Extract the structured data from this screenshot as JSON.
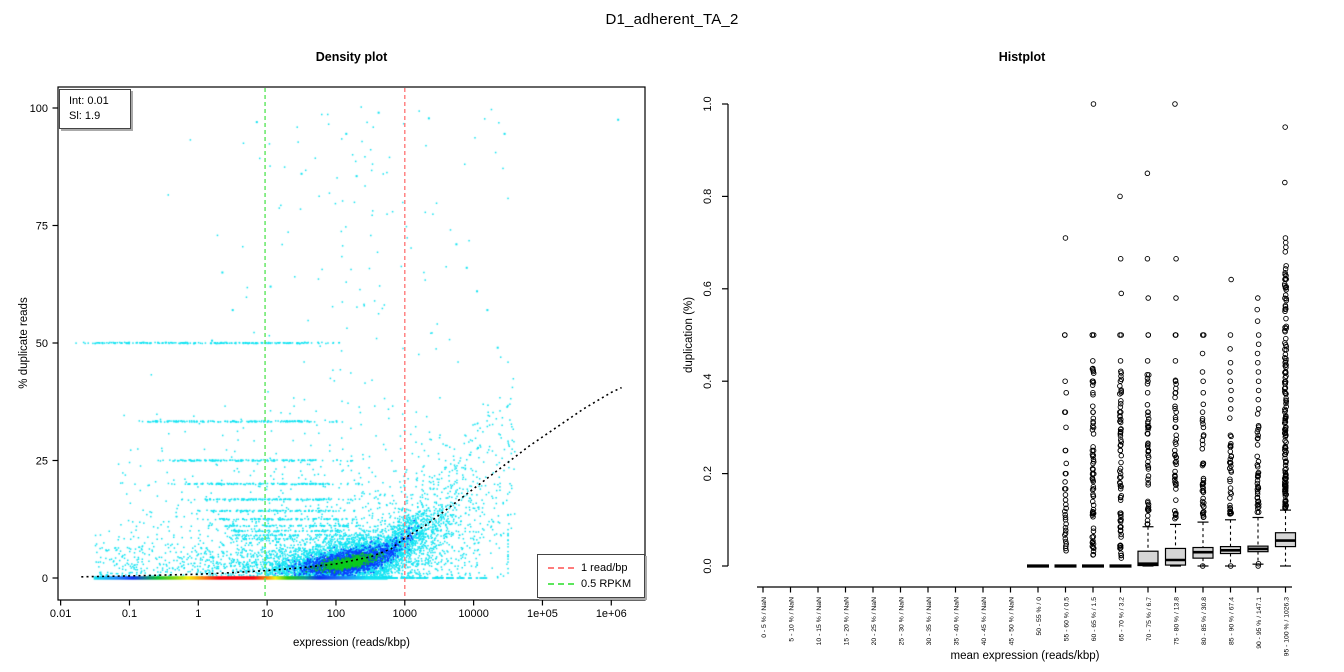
{
  "title": "D1_adherent_TA_2",
  "density_plot": {
    "title": "Density plot",
    "xlabel": "expression (reads/kbp)",
    "ylabel": "% duplicate reads",
    "stats_box": {
      "intercept_label": "Int: 0.01",
      "slope_label": "Sl: 1.9"
    },
    "legend_items": [
      {
        "label": "1 read/bp",
        "color": "#ff7b7b"
      },
      {
        "label": "0.5 RPKM",
        "color": "#5ce65c"
      }
    ]
  },
  "histplot": {
    "title": "Histplot",
    "xlabel": "mean expression (reads/kbp)",
    "ylabel": "duplication (%)"
  },
  "chart_data": [
    {
      "type": "scatter",
      "title": "Density plot",
      "xlabel": "expression (reads/kbp)",
      "ylabel": "% duplicate reads",
      "x_scale": "log10",
      "xlim_log10": [
        -2.04,
        6.49
      ],
      "ylim": [
        -4.7,
        104.5
      ],
      "x_ticks": [
        {
          "log10": -2,
          "label": "0.01"
        },
        {
          "log10": -1,
          "label": "0.1"
        },
        {
          "log10": 0,
          "label": "1"
        },
        {
          "log10": 1,
          "label": "10"
        },
        {
          "log10": 2,
          "label": "100"
        },
        {
          "log10": 3,
          "label": "1000"
        },
        {
          "log10": 4,
          "label": "10000"
        },
        {
          "log10": 5,
          "label": "1e+05"
        },
        {
          "log10": 6,
          "label": "1e+06"
        }
      ],
      "y_ticks": [
        {
          "v": 0,
          "label": "0"
        },
        {
          "v": 25,
          "label": "25"
        },
        {
          "v": 50,
          "label": "50"
        },
        {
          "v": 75,
          "label": "75"
        },
        {
          "v": 100,
          "label": "100"
        }
      ],
      "fit": {
        "intercept": 0.01,
        "slope": 1.9
      },
      "vlines": [
        {
          "log10x": 3.0,
          "label": "1 read/bp",
          "color": "#ff7b7b",
          "style": "dashed"
        },
        {
          "log10x": 0.97,
          "label": "0.5 RPKM",
          "color": "#5ce65c",
          "style": "dashed"
        }
      ],
      "fit_curve_log10x_pct": [
        [
          -1.7,
          0.25
        ],
        [
          -1.0,
          0.45
        ],
        [
          0,
          0.8
        ],
        [
          0.5,
          1.15
        ],
        [
          1,
          1.6
        ],
        [
          1.5,
          2.2
        ],
        [
          2,
          3.0
        ],
        [
          2.5,
          4.5
        ],
        [
          2.8,
          6.2
        ],
        [
          3,
          8.5
        ],
        [
          3.3,
          11.2
        ],
        [
          3.6,
          14.5
        ],
        [
          4,
          19
        ],
        [
          4.4,
          23.5
        ],
        [
          4.8,
          28
        ],
        [
          5.2,
          32
        ],
        [
          5.6,
          36
        ],
        [
          6,
          39.5
        ],
        [
          6.15,
          40.5
        ]
      ],
      "density_features": {
        "point_color": "#10e3f2",
        "stripes_pct": [
          {
            "pct": 50,
            "range_log10": [
              -1.5,
              1.58
            ],
            "n": 210
          },
          {
            "pct": 33.3,
            "range_log10": [
              -0.7,
              1.62
            ],
            "n": 150
          },
          {
            "pct": 25,
            "range_log10": [
              -0.38,
              1.77
            ],
            "n": 140
          },
          {
            "pct": 20,
            "range_log10": [
              -0.16,
              1.91
            ],
            "n": 130
          },
          {
            "pct": 16.7,
            "range_log10": [
              0.02,
              1.95
            ],
            "n": 112
          },
          {
            "pct": 14.3,
            "range_log10": [
              0.17,
              2.06
            ],
            "n": 100
          },
          {
            "pct": 12.5,
            "range_log10": [
              0.29,
              2.13
            ],
            "n": 95
          },
          {
            "pct": 11.1,
            "range_log10": [
              0.39,
              2.18
            ],
            "n": 85
          },
          {
            "pct": 10,
            "range_log10": [
              0.49,
              2.2
            ],
            "n": 72
          },
          {
            "pct": 9.1,
            "range_log10": [
              0.57,
              2.22
            ],
            "n": 58
          },
          {
            "pct": 8.3,
            "range_log10": [
              0.64,
              2.25
            ],
            "n": 46
          }
        ],
        "cloud_layers": [
          {
            "color": "#10e3f2",
            "n": 4200,
            "cx_log10": 2.2,
            "sx_log10": 0.62,
            "sy_pct": 2.6
          },
          {
            "color": "#0a3cff",
            "n": 1900,
            "cx_log10": 2.2,
            "sx_log10": 0.34,
            "sy_pct": 1.2
          },
          {
            "color": "#0ccb1f",
            "n": 750,
            "cx_log10": 2.17,
            "sx_log10": 0.185,
            "sy_pct": 0.62
          }
        ],
        "background_scatter": [
          {
            "n": 1400,
            "cx_log10": 2.3,
            "sx_log10": 1.0,
            "y_mode": "mixed"
          },
          {
            "n": 400,
            "range_log10": [
              -1.5,
              1.2
            ],
            "y_mode": "low"
          },
          {
            "n": 200,
            "range_log10": [
              -1.2,
              1.5
            ],
            "y_mode": "mid"
          }
        ],
        "curve_tail": {
          "n": 520,
          "range_log10": [
            2.9,
            4.6
          ]
        },
        "zero_band": {
          "y_pct": 0,
          "extent_log10": [
            -1.52,
            2.75
          ],
          "sparse_tail_log10": [
            2.75,
            4.2
          ],
          "gradient_stops": [
            [
              -1.52,
              "#10e3f2"
            ],
            [
              -1.15,
              "#1b7bf7"
            ],
            [
              -0.95,
              "#0a30f0"
            ],
            [
              -0.6,
              "#0bbf30"
            ],
            [
              -0.35,
              "#7fd70a"
            ],
            [
              -0.15,
              "#f5ee05"
            ],
            [
              0.05,
              "#fb8a05"
            ],
            [
              0.3,
              "#fb0007"
            ],
            [
              0.8,
              "#fb0007"
            ],
            [
              1.0,
              "#fb8a05"
            ],
            [
              1.12,
              "#f5ee05"
            ],
            [
              1.3,
              "#2acb0a"
            ],
            [
              1.55,
              "#0a9f8a"
            ],
            [
              1.75,
              "#0a30f0"
            ],
            [
              2.1,
              "#1b7bf7"
            ],
            [
              2.45,
              "#10e3f2"
            ],
            [
              2.75,
              "#10e3f2"
            ]
          ]
        },
        "extra_points_log10x_pct": [
          [
            6.1,
            97.5
          ],
          [
            4.45,
            94.5
          ],
          [
            3.35,
            97.8
          ],
          [
            2.62,
            99
          ],
          [
            0.85,
            97
          ],
          [
            2.15,
            94.5
          ],
          [
            1.5,
            86
          ],
          [
            3.9,
            66
          ],
          [
            4.05,
            61
          ],
          [
            4.2,
            57
          ],
          [
            3.75,
            71
          ],
          [
            2.3,
            85.5
          ],
          [
            0.35,
            65
          ],
          [
            0.5,
            57
          ],
          [
            1.05,
            62
          ],
          [
            0.2,
            50.5
          ],
          [
            4.35,
            49
          ]
        ]
      }
    },
    {
      "type": "boxplot",
      "title": "Histplot",
      "xlabel": "mean expression (reads/kbp)",
      "ylabel": "duplication (%)",
      "ylim": [
        0,
        1
      ],
      "y_ticks": [
        {
          "v": 0,
          "label": "0.0"
        },
        {
          "v": 0.2,
          "label": "0.2"
        },
        {
          "v": 0.4,
          "label": "0.4"
        },
        {
          "v": 0.6,
          "label": "0.6"
        },
        {
          "v": 0.8,
          "label": "0.8"
        },
        {
          "v": 1,
          "label": "1.0"
        }
      ],
      "bins": [
        {
          "label": "0 - 5 % / NaN",
          "box": null
        },
        {
          "label": "5 - 10 % / NaN",
          "box": null
        },
        {
          "label": "10 - 15 % / NaN",
          "box": null
        },
        {
          "label": "15 - 20 % / NaN",
          "box": null
        },
        {
          "label": "20 - 25 % / NaN",
          "box": null
        },
        {
          "label": "25 - 30 % / NaN",
          "box": null
        },
        {
          "label": "30 - 35 % / NaN",
          "box": null
        },
        {
          "label": "35 - 40 % / NaN",
          "box": null
        },
        {
          "label": "40 - 45 % / NaN",
          "box": null
        },
        {
          "label": "45 - 50 % / NaN",
          "box": null
        },
        {
          "label": "50 - 55 % / 0",
          "box": {
            "q1": 0,
            "median": 0,
            "q3": 0,
            "lo": 0,
            "hi": 0
          }
        },
        {
          "label": "55 - 60 % / 0.5",
          "box": {
            "q1": 0,
            "median": 0,
            "q3": 0,
            "lo": 0,
            "hi": 0
          },
          "outliers": [
            0.71,
            0.5,
            0.5,
            0.4,
            0.375,
            0.333,
            0.333,
            0.3,
            0.25,
            0.25,
            0.222,
            0.2,
            0.2,
            0.182,
            0.167,
            0.167,
            0.154,
            0.143,
            0.133,
            0.125,
            0.118,
            0.111,
            0.105,
            0.1,
            0.091,
            0.083,
            0.077,
            0.071,
            0.067,
            0.059,
            0.053,
            0.048,
            0.043,
            0.038,
            0.033
          ]
        },
        {
          "label": "60 - 65 % / 1.5",
          "box": {
            "q1": 0,
            "median": 0,
            "q3": 0,
            "lo": 0,
            "hi": 0
          },
          "outliers": [
            1.0,
            0.5,
            0.5,
            0.5,
            0.444,
            0.4,
            0.4,
            0.375,
            0.333,
            0.333,
            0.286,
            0.25,
            0.25,
            0.2,
            0.167
          ],
          "outlier_run": {
            "min": 0.02,
            "max": 0.43,
            "count": 60
          }
        },
        {
          "label": "65 - 70 % / 3.2",
          "box": {
            "q1": 0,
            "median": 0,
            "q3": 0,
            "lo": 0,
            "hi": 0
          },
          "outliers": [
            0.8,
            0.665,
            0.59,
            0.5,
            0.5,
            0.444,
            0.4,
            0.375,
            0.333,
            0.333,
            0.286,
            0.25,
            0.25,
            0.2
          ],
          "outlier_run": {
            "min": 0.015,
            "max": 0.43,
            "count": 66
          }
        },
        {
          "label": "70 - 75 % / 6.7",
          "box": {
            "q1": 0.001,
            "median": 0.005,
            "q3": 0.032,
            "lo": 0,
            "hi": 0.085
          },
          "outliers": [
            0.85,
            0.665,
            0.58,
            0.5,
            0.5,
            0.444,
            0.4,
            0.375,
            0.333,
            0.333,
            0.3,
            0.286,
            0.25,
            0.25
          ],
          "outlier_run": {
            "min": 0.09,
            "max": 0.42,
            "count": 42
          }
        },
        {
          "label": "75 - 80 % / 13.8",
          "box": {
            "q1": 0.002,
            "median": 0.013,
            "q3": 0.038,
            "lo": 0,
            "hi": 0.09
          },
          "outliers": [
            1.0,
            0.665,
            0.58,
            0.5,
            0.5,
            0.444,
            0.4,
            0.375,
            0.333,
            0.3,
            0.25
          ],
          "outlier_run": {
            "min": 0.1,
            "max": 0.42,
            "count": 40
          }
        },
        {
          "label": "80 - 85 % / 30.8",
          "box": {
            "q1": 0.017,
            "median": 0.03,
            "q3": 0.04,
            "lo": 0,
            "hi": 0.095
          },
          "outliers": [
            0.5,
            0.5,
            0.46,
            0.42,
            0.4,
            0.375,
            0.35,
            0.333,
            0.3,
            0.0
          ],
          "outlier_run": {
            "min": 0.105,
            "max": 0.33,
            "count": 36
          }
        },
        {
          "label": "85 - 90 % / 67.4",
          "box": {
            "q1": 0.027,
            "median": 0.034,
            "q3": 0.042,
            "lo": 0,
            "hi": 0.1
          },
          "outliers": [
            0.62,
            0.5,
            0.47,
            0.44,
            0.42,
            0.4,
            0.38,
            0.36,
            0.34,
            0.32,
            0.0
          ],
          "outlier_run": {
            "min": 0.11,
            "max": 0.31,
            "count": 34
          }
        },
        {
          "label": "90 - 95 % / 147.1",
          "box": {
            "q1": 0.031,
            "median": 0.037,
            "q3": 0.043,
            "lo": 0.004,
            "hi": 0.105
          },
          "outliers": [
            0.58,
            0.555,
            0.53,
            0.5,
            0.48,
            0.46,
            0.44,
            0.42,
            0.4,
            0.38,
            0.36,
            0.34,
            0.005,
            0.0
          ],
          "outlier_run": {
            "min": 0.115,
            "max": 0.33,
            "count": 38
          }
        },
        {
          "label": "95 - 100 % / 1026.3",
          "box": {
            "q1": 0.042,
            "median": 0.055,
            "q3": 0.072,
            "lo": 0,
            "hi": 0.121
          },
          "outliers": [
            0.95,
            0.83,
            0.71,
            0.7,
            0.69,
            0.68
          ],
          "outlier_run": {
            "min": 0.125,
            "max": 0.665,
            "count": 150
          }
        }
      ]
    }
  ]
}
